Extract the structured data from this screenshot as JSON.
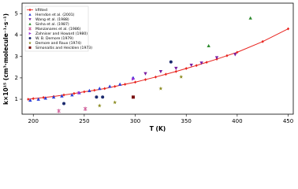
{
  "chart_data": {
    "type": "scatter",
    "x_label": "T (K)",
    "y_label": "k×10¹⁵ (cm³·molecule⁻¹·s⁻¹)",
    "xlim": [
      189,
      455
    ],
    "ylim": [
      0.3,
      5.5
    ],
    "xticks": [
      200,
      250,
      300,
      350,
      400,
      450
    ],
    "yticks": [
      1,
      2,
      3,
      4,
      5
    ],
    "legend": "upper left",
    "series": [
      {
        "name": "kfitted",
        "color": "#e8231e",
        "marker": "diamond",
        "line": true,
        "x": [
          195,
          200,
          210,
          220,
          230,
          240,
          250,
          260,
          270,
          280,
          290,
          300,
          310,
          320,
          330,
          340,
          350,
          360,
          370,
          380,
          390,
          400,
          425,
          450
        ],
        "values": [
          1.0,
          1.03,
          1.08,
          1.13,
          1.2,
          1.27,
          1.35,
          1.42,
          1.5,
          1.6,
          1.7,
          1.8,
          1.92,
          2.04,
          2.17,
          2.3,
          2.44,
          2.58,
          2.73,
          2.88,
          3.04,
          3.2,
          3.7,
          4.3
        ]
      },
      {
        "name": "Herndon et al. (2001)",
        "color": "#2b3fd6",
        "marker": "triangle-up",
        "x": [
          197,
          205,
          212,
          220,
          228,
          238,
          245,
          255,
          265,
          275,
          285,
          298
        ],
        "values": [
          0.95,
          1.0,
          1.05,
          1.1,
          1.15,
          1.2,
          1.3,
          1.4,
          1.5,
          1.6,
          1.7,
          2.0
        ]
      },
      {
        "name": "Wang et al. (1988)",
        "color": "#7a1fa2",
        "marker": "triangle-down",
        "x": [
          310,
          325,
          340,
          355,
          365,
          380,
          398
        ],
        "values": [
          2.2,
          2.3,
          2.45,
          2.6,
          2.7,
          2.95,
          3.1
        ]
      },
      {
        "name": "Sinha et al. (1987)",
        "color": "#2e8b2e",
        "marker": "triangle-up",
        "x": [
          372,
          413
        ],
        "values": [
          3.5,
          4.8
        ]
      },
      {
        "name": "Manzanares et al. (1986)",
        "color": "#d0609a",
        "marker": "x",
        "x": [
          225,
          251
        ],
        "values": [
          0.45,
          0.55
        ]
      },
      {
        "name": "Zahniser and Howard (1980)",
        "color": "#9b30d8",
        "marker": "triangle-right",
        "x": [
          245,
          298
        ],
        "values": [
          1.3,
          1.95
        ]
      },
      {
        "name": "W. B. Demore (1979)",
        "color": "#1c2a6e",
        "marker": "circle",
        "x": [
          230,
          262,
          268,
          335
        ],
        "values": [
          0.8,
          1.1,
          1.1,
          2.75
        ]
      },
      {
        "name": "Demore and Raux (1974)",
        "color": "#8a8a1e",
        "marker": "star",
        "x": [
          265,
          280,
          325,
          345
        ],
        "values": [
          0.7,
          0.85,
          1.5,
          2.05
        ]
      },
      {
        "name": "Simonaitis and Heicklen (1973)",
        "color": "#7a1010",
        "marker": "square",
        "x": [
          298
        ],
        "values": [
          1.1
        ]
      }
    ]
  }
}
